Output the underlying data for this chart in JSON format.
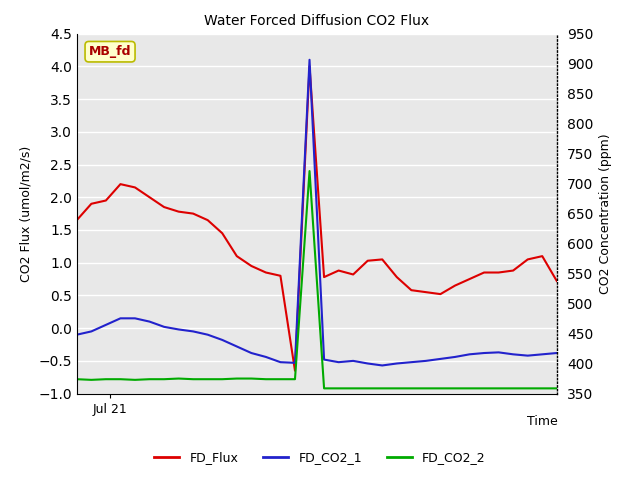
{
  "title": "Water Forced Diffusion CO2 Flux",
  "xlabel": "Time",
  "ylabel_left": "CO2 Flux (umol/m2/s)",
  "ylabel_right": "CO2 Concentration (ppm)",
  "annotation_text": "MB_fd",
  "annotation_bg": "#ffffcc",
  "annotation_border": "#bbbb00",
  "annotation_text_color": "#aa0000",
  "ylim_left": [
    -1.0,
    4.5
  ],
  "ylim_right": [
    350,
    950
  ],
  "yticks_left": [
    -1.0,
    -0.5,
    0.0,
    0.5,
    1.0,
    1.5,
    2.0,
    2.5,
    3.0,
    3.5,
    4.0,
    4.5
  ],
  "yticks_right": [
    350,
    400,
    450,
    500,
    550,
    600,
    650,
    700,
    750,
    800,
    850,
    900,
    950
  ],
  "x_tick_label": "Jul 21",
  "bg_color": "#e8e8e8",
  "grid_color": "#ffffff",
  "fd_flux": [
    1.65,
    1.9,
    1.95,
    2.2,
    2.15,
    2.0,
    1.85,
    1.78,
    1.75,
    1.65,
    1.45,
    1.1,
    0.95,
    0.85,
    0.8,
    -0.65,
    4.0,
    0.78,
    0.88,
    0.82,
    1.03,
    1.05,
    0.78,
    0.58,
    0.55,
    0.52,
    0.65,
    0.75,
    0.85,
    0.85,
    0.88,
    1.05,
    1.1,
    0.72
  ],
  "fd_co2_1": [
    -0.1,
    -0.05,
    0.05,
    0.15,
    0.15,
    0.1,
    0.02,
    -0.02,
    -0.05,
    -0.1,
    -0.18,
    -0.28,
    -0.38,
    -0.44,
    -0.52,
    -0.53,
    4.1,
    -0.48,
    -0.52,
    -0.5,
    -0.54,
    -0.57,
    -0.54,
    -0.52,
    -0.5,
    -0.47,
    -0.44,
    -0.4,
    -0.38,
    -0.37,
    -0.4,
    -0.42,
    -0.4,
    -0.38
  ],
  "fd_co2_2": [
    -0.78,
    -0.79,
    -0.78,
    -0.78,
    -0.79,
    -0.78,
    -0.78,
    -0.77,
    -0.78,
    -0.78,
    -0.78,
    -0.77,
    -0.77,
    -0.78,
    -0.78,
    -0.78,
    2.4,
    -0.92,
    -0.92,
    -0.92,
    -0.92,
    -0.92,
    -0.92,
    -0.92,
    -0.92,
    -0.92,
    -0.92,
    -0.92,
    -0.92,
    -0.92,
    -0.92,
    -0.92,
    -0.92,
    -0.92
  ],
  "flux_color": "#dd0000",
  "co2_1_color": "#2222cc",
  "co2_2_color": "#00aa00",
  "line_width": 1.5,
  "fig_bg": "#ffffff"
}
